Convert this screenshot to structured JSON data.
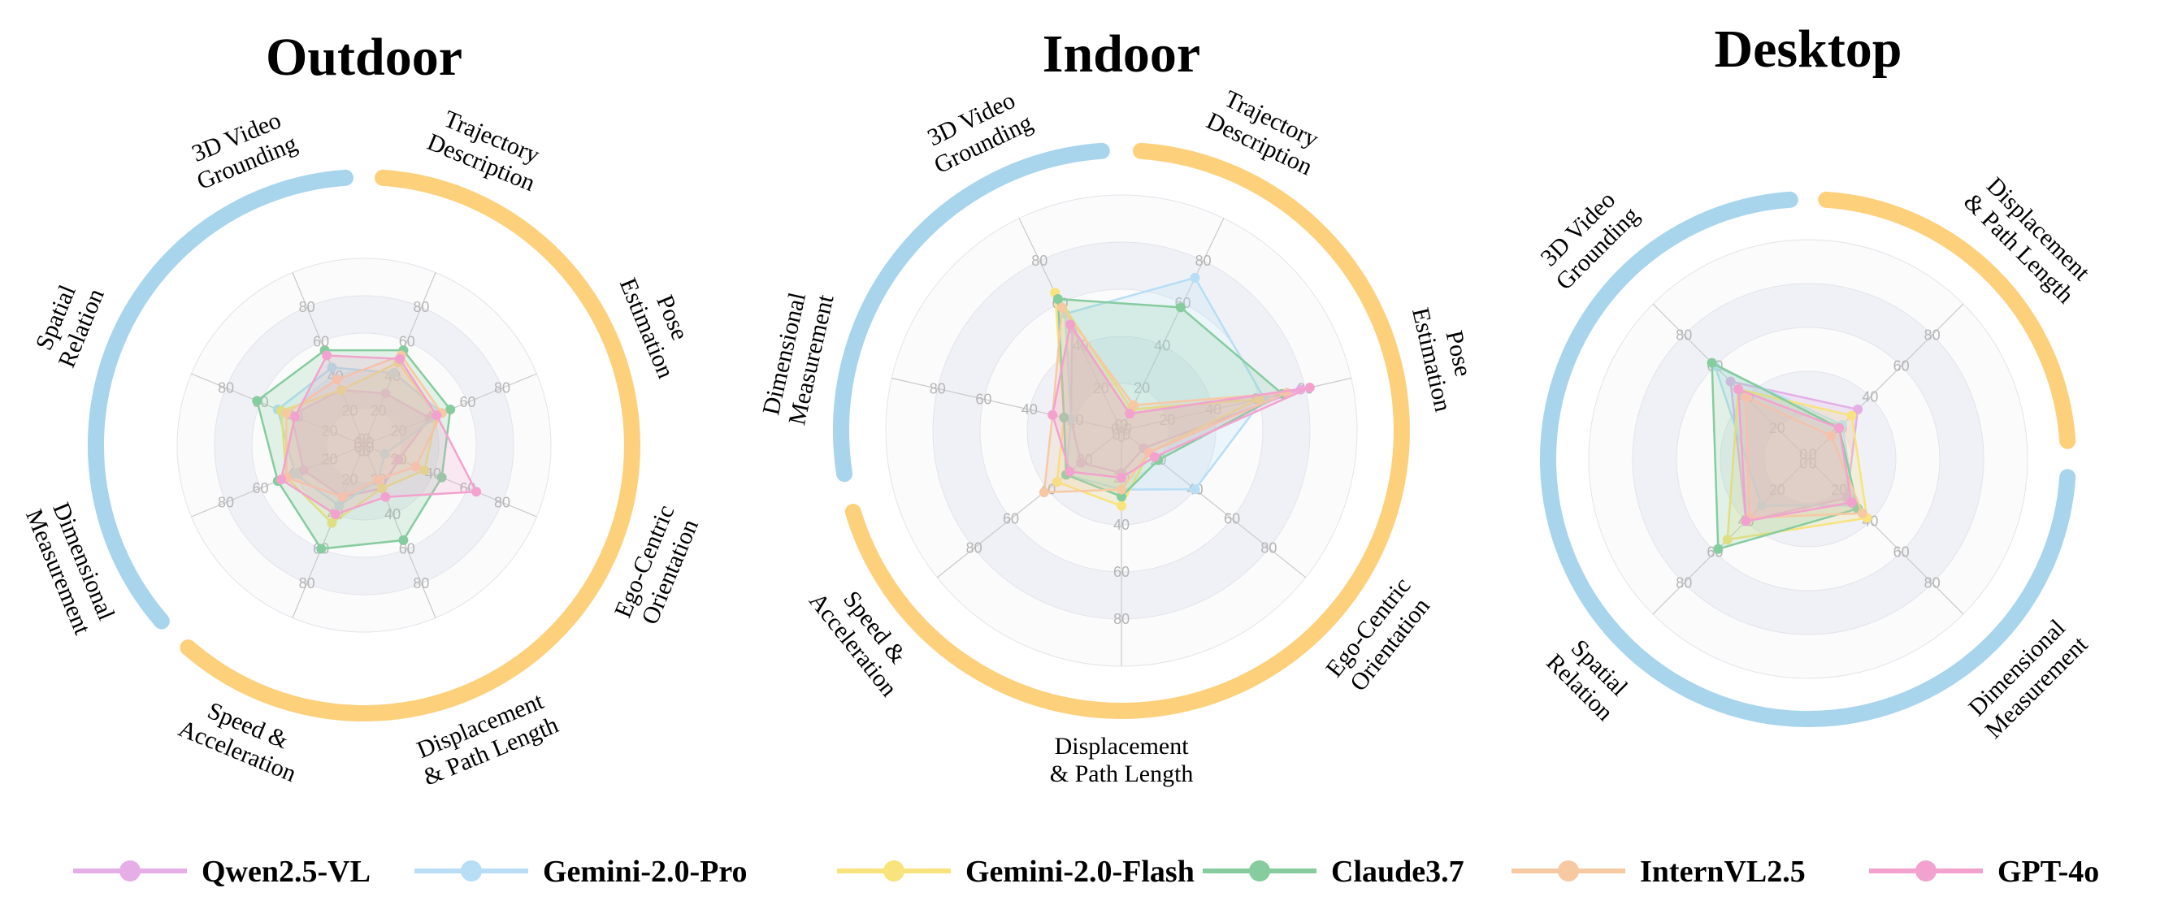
{
  "colors": {
    "outer_arc_blue": "#a8d5ec",
    "outer_arc_orange": "#fdd07c",
    "ring_shade": "#f0f1f7",
    "ring_white": "#fbfbfc",
    "grid_line": "#c9c9c9",
    "tick_text": "#b5b5b5"
  },
  "legend": [
    {
      "name": "Qwen2.5-VL",
      "color": "#e5aee6"
    },
    {
      "name": "Gemini-2.0-Pro",
      "color": "#b7def5"
    },
    {
      "name": "Gemini-2.0-Flash",
      "color": "#f8e37c"
    },
    {
      "name": "Claude3.7",
      "color": "#86cc9f"
    },
    {
      "name": "InternVL2.5",
      "color": "#f6c9a3"
    },
    {
      "name": "GPT-4o",
      "color": "#f3a2cf"
    }
  ],
  "tick_values": [
    "0",
    "20",
    "40",
    "60",
    "80"
  ],
  "chart_data": [
    {
      "type": "radar",
      "title": "Outdoor",
      "rmax": 100,
      "ticks": [
        0,
        20,
        40,
        60,
        80
      ],
      "axes": [
        {
          "label": [
            "Trajectory",
            "Description"
          ],
          "group": "orange"
        },
        {
          "label": [
            "Pose",
            "Estimation"
          ],
          "group": "orange"
        },
        {
          "label": [
            "Ego-Centric",
            "Orientation"
          ],
          "group": "orange"
        },
        {
          "label": [
            "Displacement",
            "& Path Length"
          ],
          "group": "orange"
        },
        {
          "label": [
            "Speed &",
            "Acceleration"
          ],
          "group": "orange"
        },
        {
          "label": [
            "Dimensional",
            "Measurement"
          ],
          "group": "blue"
        },
        {
          "label": [
            "Spatial",
            "Relation"
          ],
          "group": "blue"
        },
        {
          "label": [
            "3D Video",
            "Grounding"
          ],
          "group": "blue"
        }
      ],
      "series": [
        {
          "name": "Qwen2.5-VL",
          "values": [
            30,
            38,
            20,
            25,
            30,
            35,
            42,
            32
          ]
        },
        {
          "name": "Gemini-2.0-Pro",
          "values": [
            42,
            45,
            12,
            20,
            35,
            40,
            50,
            45
          ]
        },
        {
          "name": "Gemini-2.0-Flash",
          "values": [
            48,
            42,
            35,
            25,
            45,
            45,
            48,
            32
          ]
        },
        {
          "name": "Claude3.7",
          "values": [
            55,
            50,
            45,
            55,
            60,
            50,
            62,
            55
          ]
        },
        {
          "name": "InternVL2.5",
          "values": [
            52,
            45,
            30,
            20,
            30,
            45,
            45,
            38
          ]
        },
        {
          "name": "GPT-4o",
          "values": [
            50,
            42,
            65,
            30,
            40,
            48,
            40,
            52
          ]
        }
      ]
    },
    {
      "type": "radar",
      "title": "Indoor",
      "rmax": 100,
      "ticks": [
        0,
        20,
        40,
        60,
        80
      ],
      "axes": [
        {
          "label": [
            "Trajectory",
            "Description"
          ],
          "group": "orange"
        },
        {
          "label": [
            "Pose",
            "Estimation"
          ],
          "group": "orange"
        },
        {
          "label": [
            "Ego-Centric",
            "Orientation"
          ],
          "group": "orange"
        },
        {
          "label": [
            "Displacement",
            "& Path Length"
          ],
          "group": "orange"
        },
        {
          "label": [
            "Speed &",
            "Acceleration"
          ],
          "group": "orange"
        },
        {
          "label": [
            "Dimensional",
            "Measurement"
          ],
          "group": "blue"
        },
        {
          "label": [
            "3D Video",
            "Grounding"
          ],
          "group": "blue"
        }
      ],
      "series": [
        {
          "name": "Qwen2.5-VL",
          "values": [
            8,
            78,
            12,
            18,
            22,
            22,
            48
          ]
        },
        {
          "name": "Gemini-2.0-Pro",
          "values": [
            72,
            62,
            40,
            25,
            30,
            22,
            55
          ]
        },
        {
          "name": "Gemini-2.0-Flash",
          "values": [
            10,
            60,
            15,
            32,
            35,
            25,
            65
          ]
        },
        {
          "name": "Claude3.7",
          "values": [
            58,
            70,
            20,
            28,
            30,
            25,
            62
          ]
        },
        {
          "name": "InternVL2.5",
          "values": [
            12,
            72,
            15,
            25,
            42,
            30,
            58
          ]
        },
        {
          "name": "GPT-4o",
          "values": [
            8,
            82,
            18,
            20,
            28,
            30,
            50
          ]
        }
      ]
    },
    {
      "type": "radar",
      "title": "Desktop",
      "rmax": 100,
      "ticks": [
        0,
        20,
        40,
        60,
        80
      ],
      "axes": [
        {
          "label": [
            "Displacement",
            "& Path Length"
          ],
          "group": "orange"
        },
        {
          "label": [
            "Dimensional",
            "Measurement"
          ],
          "group": "blue"
        },
        {
          "label": [
            "Spatial",
            "Relation"
          ],
          "group": "blue"
        },
        {
          "label": [
            "3D Video",
            "Grounding"
          ],
          "group": "blue"
        }
      ],
      "series": [
        {
          "name": "Qwen2.5-VL",
          "values": [
            32,
            25,
            40,
            50
          ]
        },
        {
          "name": "Gemini-2.0-Pro",
          "values": [
            22,
            30,
            30,
            60
          ]
        },
        {
          "name": "Gemini-2.0-Flash",
          "values": [
            28,
            38,
            52,
            45
          ]
        },
        {
          "name": "Claude3.7",
          "values": [
            20,
            32,
            58,
            62
          ]
        },
        {
          "name": "InternVL2.5",
          "values": [
            15,
            35,
            38,
            40
          ]
        },
        {
          "name": "GPT-4o",
          "values": [
            20,
            28,
            40,
            45
          ]
        }
      ]
    }
  ]
}
